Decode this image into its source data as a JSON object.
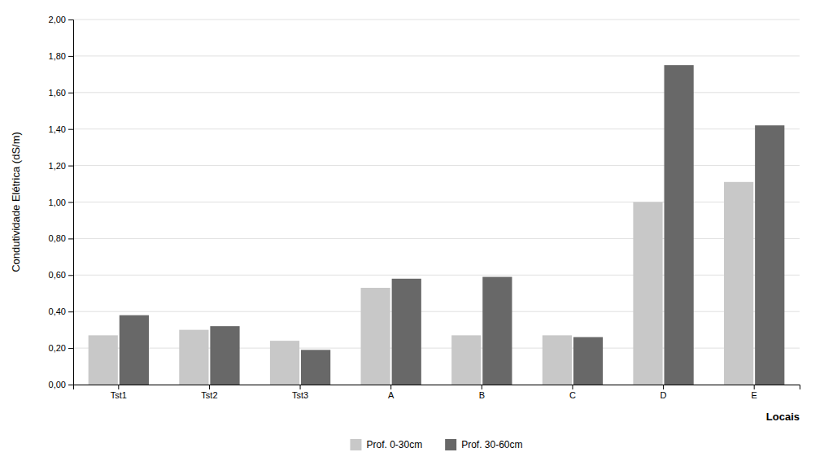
{
  "chart_data": {
    "type": "bar",
    "categories": [
      "Tst1",
      "Tst2",
      "Tst3",
      "A",
      "B",
      "C",
      "D",
      "E"
    ],
    "series": [
      {
        "name": "Prof. 0-30cm",
        "color": "#c8c8c8",
        "values": [
          0.27,
          0.3,
          0.24,
          0.53,
          0.27,
          0.27,
          1.0,
          1.11
        ]
      },
      {
        "name": "Prof. 30-60cm",
        "color": "#686868",
        "values": [
          0.38,
          0.32,
          0.19,
          0.58,
          0.59,
          0.26,
          1.75,
          1.42
        ]
      }
    ],
    "ylabel": "Condutividade Elétrica (dS/m)",
    "xlabel": "Locais",
    "ylim": [
      0.0,
      2.0
    ],
    "yticks": [
      {
        "value": 0.0,
        "label": "0,00"
      },
      {
        "value": 0.2,
        "label": "0,20"
      },
      {
        "value": 0.4,
        "label": "0,40"
      },
      {
        "value": 0.6,
        "label": "0,60"
      },
      {
        "value": 0.8,
        "label": "0,80"
      },
      {
        "value": 1.0,
        "label": "1,00"
      },
      {
        "value": 1.2,
        "label": "1,20"
      },
      {
        "value": 1.4,
        "label": "1,40"
      },
      {
        "value": 1.6,
        "label": "1,60"
      },
      {
        "value": 1.8,
        "label": "1,80"
      },
      {
        "value": 2.0,
        "label": "2,00"
      }
    ],
    "grid": true,
    "legend": "bottom"
  }
}
